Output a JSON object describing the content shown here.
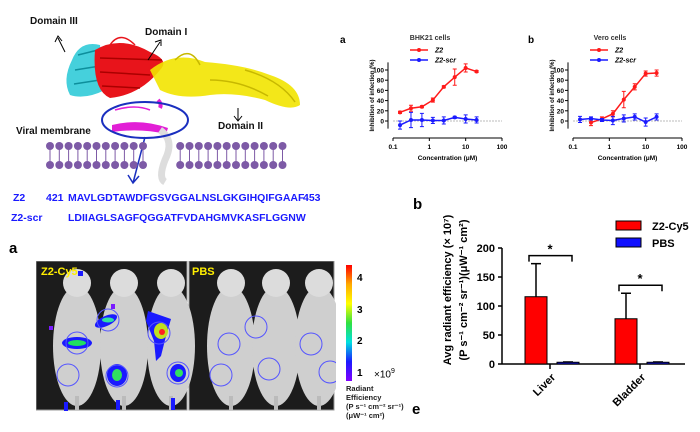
{
  "structure": {
    "domain3": "Domain III",
    "domain1": "Domain I",
    "domain2": "Domain II",
    "membrane": "Viral membrane",
    "colors": {
      "domain1": "#e8141b",
      "domain2": "#f2e400",
      "domain3": "#25c8d6",
      "peptide": "#e21fd6",
      "membrane": "#7d5aa6"
    }
  },
  "sequences": [
    {
      "name": "Z2",
      "start": "421",
      "seq": "MAVLGDTAWDFGSVGGALNSLGKGIHQIFGAAF",
      "end": "453"
    },
    {
      "name": "Z2-scr",
      "start": "",
      "seq": "LDIIAGLSAGFQGGATFVDAHGMVKASFLGGNW",
      "end": ""
    }
  ],
  "imaging": {
    "panel_label": "a",
    "group1": "Z2-Cy5",
    "group2": "PBS",
    "colorbar_ticks": [
      "4",
      "3",
      "2",
      "1"
    ],
    "colorbar_scale": "×10",
    "colorbar_exp": "9",
    "colorbar_title": [
      "Radiant",
      "Efficiency",
      "(P s⁻¹ cm⁻² sr⁻¹)",
      "(μW⁻¹ cm²)"
    ]
  },
  "chart_data": [
    {
      "type": "line",
      "panel": "a",
      "title": "BHK21 cells",
      "xlabel": "Concentration (μM)",
      "ylabel": "Inhibition of infection (%)",
      "xscale": "log",
      "xlim": [
        0.1,
        100
      ],
      "ylim": [
        -15,
        115
      ],
      "xticks": [
        "0.1",
        "1",
        "10",
        "100"
      ],
      "yticks": [
        "0",
        "20",
        "40",
        "60",
        "80",
        "100"
      ],
      "legend": "top-left",
      "series": [
        {
          "name": "Z2",
          "color": "#ff1a1a",
          "x": [
            0.156,
            0.3125,
            0.625,
            1.25,
            2.5,
            5,
            10,
            20
          ],
          "y": [
            17,
            25,
            28,
            41,
            67,
            86,
            104,
            97
          ],
          "err": [
            2,
            6,
            2,
            4,
            2,
            16,
            8,
            2
          ]
        },
        {
          "name": "Z2-scr",
          "color": "#1a1aff",
          "x": [
            0.156,
            0.3125,
            0.625,
            1.25,
            2.5,
            5,
            10,
            20
          ],
          "y": [
            -8,
            2,
            2,
            1,
            1,
            7,
            4,
            2
          ],
          "err": [
            8,
            15,
            13,
            6,
            7,
            2,
            8,
            6
          ]
        }
      ]
    },
    {
      "type": "line",
      "panel": "b",
      "title": "Vero cells",
      "xlabel": "Concentration (μM)",
      "ylabel": "Inhibition of infection (%)",
      "xscale": "log",
      "xlim": [
        0.1,
        100
      ],
      "ylim": [
        -15,
        115
      ],
      "xticks": [
        "0.1",
        "1",
        "10",
        "100"
      ],
      "yticks": [
        "0",
        "20",
        "40",
        "60",
        "80",
        "100"
      ],
      "legend": "top-left",
      "series": [
        {
          "name": "Z2",
          "color": "#ff1a1a",
          "x": [
            0.3125,
            0.625,
            1.25,
            2.5,
            5,
            10,
            20
          ],
          "y": [
            -3,
            4,
            14,
            42,
            67,
            93,
            94
          ],
          "err": [
            6,
            4,
            6,
            16,
            6,
            5,
            6
          ]
        },
        {
          "name": "Z2-scr",
          "color": "#1a1aff",
          "x": [
            0.156,
            0.3125,
            0.625,
            1.25,
            2.5,
            5,
            10,
            20
          ],
          "y": [
            3,
            5,
            2,
            1,
            5,
            8,
            -2,
            8
          ],
          "err": [
            6,
            3,
            3,
            8,
            7,
            6,
            8,
            6
          ]
        }
      ]
    },
    {
      "type": "bar",
      "panel": "b",
      "title": "",
      "categories": [
        "Liver",
        "Bladder"
      ],
      "ylabel_line1": "Avg radiant efficiency (× 10⁷)",
      "ylabel_line2": "(P s⁻¹ cm⁻² sr⁻¹)(μW⁻¹ cm²)",
      "ylim": [
        0,
        200
      ],
      "yticks": [
        "0",
        "50",
        "100",
        "150",
        "200"
      ],
      "legend": "top-right",
      "significance": "*",
      "series": [
        {
          "name": "Z2-Cy5",
          "color": "#ff0000",
          "values": [
            116,
            78
          ],
          "err": [
            57,
            44
          ]
        },
        {
          "name": "PBS",
          "color": "#1010ff",
          "values": [
            3,
            3
          ],
          "err": [
            0.5,
            0.5
          ]
        }
      ]
    }
  ],
  "extra_panel_label": "e"
}
